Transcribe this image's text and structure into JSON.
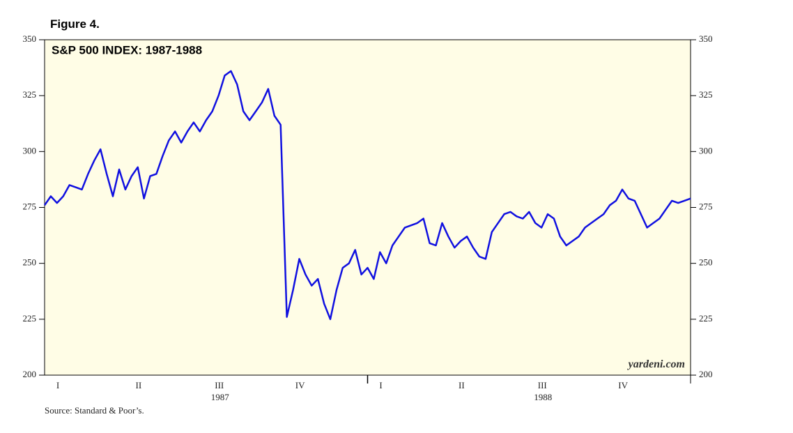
{
  "chart_data": {
    "type": "line",
    "figure_label": "Figure 4.",
    "title": "S&P 500 INDEX: 1987-1988",
    "watermark": "yardeni.com",
    "source": "Source: Standard & Poor’s.",
    "quarter_labels": [
      "I",
      "II",
      "III",
      "IV",
      "I",
      "II",
      "III",
      "IV"
    ],
    "year_labels": [
      "1987",
      "1988"
    ],
    "ylim": [
      200,
      350
    ],
    "yticks": [
      200,
      225,
      250,
      275,
      300,
      325,
      350
    ],
    "background": "#fffde6",
    "series": [
      {
        "name": "S&P 500",
        "color": "#1010e0",
        "values": [
          276,
          280,
          277,
          280,
          285,
          284,
          283,
          290,
          296,
          301,
          290,
          280,
          292,
          283,
          289,
          293,
          279,
          289,
          290,
          298,
          305,
          309,
          304,
          309,
          313,
          309,
          314,
          318,
          325,
          334,
          336,
          330,
          318,
          314,
          318,
          322,
          328,
          316,
          312,
          226,
          238,
          252,
          245,
          240,
          243,
          232,
          225,
          238,
          248,
          250,
          256,
          245,
          248,
          243,
          255,
          250,
          258,
          262,
          266,
          267,
          268,
          270,
          259,
          258,
          268,
          262,
          257,
          260,
          262,
          257,
          253,
          252,
          264,
          268,
          272,
          273,
          271,
          270,
          273,
          268,
          266,
          272,
          270,
          262,
          258,
          260,
          262,
          266,
          268,
          270,
          272,
          276,
          278,
          283,
          279,
          278,
          272,
          266,
          268,
          270,
          274,
          278,
          277,
          278,
          279
        ]
      }
    ]
  }
}
